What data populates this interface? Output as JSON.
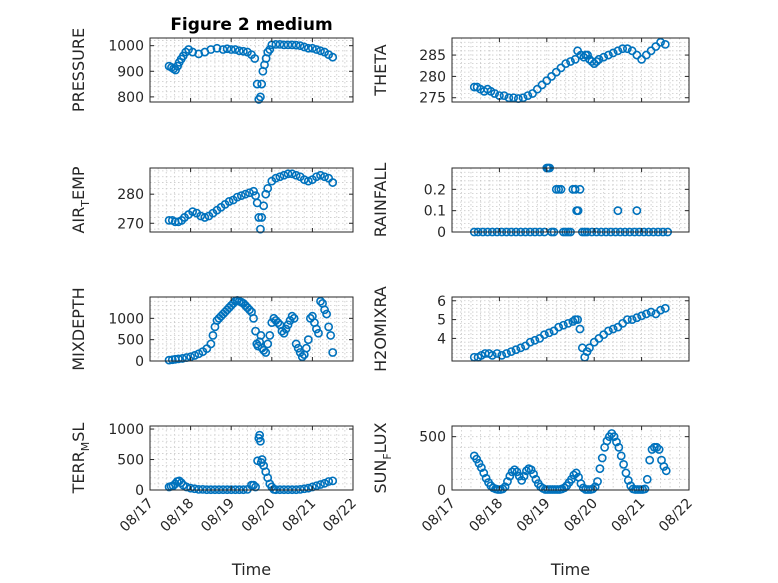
{
  "figure": {
    "background": "#ffffff",
    "marker_color": "#0072bd",
    "marker": "circle",
    "grid": "on",
    "minor_grid": "on"
  },
  "chart_data": [
    {
      "id": "pressure",
      "type": "scatter",
      "title": "Figure 2 medium",
      "xlabel": "",
      "ylabel": "PRESSURE",
      "xlim": [
        0,
        5
      ],
      "ylim": [
        780,
        1030
      ],
      "xticks": [],
      "yticks": [
        800,
        900,
        1000
      ],
      "yticklabels": [
        "800",
        "900",
        "1000"
      ],
      "x": [
        0.47,
        0.53,
        0.58,
        0.63,
        0.68,
        0.72,
        0.77,
        0.82,
        0.88,
        0.95,
        1.05,
        1.2,
        1.35,
        1.5,
        1.65,
        1.8,
        1.9,
        2.0,
        2.1,
        2.2,
        2.3,
        2.4,
        2.5,
        2.58,
        2.64,
        2.68,
        2.72,
        2.75,
        2.78,
        2.82,
        2.86,
        2.9,
        2.95,
        3.0,
        3.1,
        3.2,
        3.3,
        3.4,
        3.5,
        3.6,
        3.7,
        3.8,
        3.9,
        4.0,
        4.1,
        4.2,
        4.3,
        4.4,
        4.5
      ],
      "y": [
        920,
        915,
        910,
        905,
        920,
        935,
        948,
        960,
        975,
        985,
        975,
        968,
        975,
        985,
        990,
        985,
        988,
        985,
        985,
        980,
        978,
        975,
        965,
        950,
        850,
        790,
        800,
        850,
        900,
        925,
        950,
        975,
        985,
        1003,
        1005,
        1005,
        1003,
        1003,
        1003,
        1002,
        1000,
        995,
        990,
        990,
        985,
        980,
        975,
        965,
        955
      ]
    },
    {
      "id": "theta",
      "type": "scatter",
      "title": "",
      "xlabel": "",
      "ylabel": "THETA",
      "xlim": [
        0,
        5
      ],
      "ylim": [
        274,
        289
      ],
      "xticks": [],
      "yticks": [
        275,
        280,
        285
      ],
      "yticklabels": [
        "275",
        "280",
        "285"
      ],
      "x": [
        0.47,
        0.53,
        0.6,
        0.68,
        0.75,
        0.82,
        0.9,
        1.0,
        1.1,
        1.2,
        1.3,
        1.4,
        1.5,
        1.6,
        1.7,
        1.8,
        1.9,
        2.0,
        2.1,
        2.2,
        2.3,
        2.4,
        2.5,
        2.6,
        2.65,
        2.72,
        2.78,
        2.82,
        2.86,
        2.9,
        2.95,
        3.0,
        3.05,
        3.1,
        3.2,
        3.3,
        3.4,
        3.5,
        3.6,
        3.7,
        3.8,
        3.9,
        4.0,
        4.1,
        4.2,
        4.3,
        4.4,
        4.5
      ],
      "y": [
        277.5,
        277.5,
        277,
        276.5,
        277,
        276.5,
        276,
        275.5,
        275.5,
        275,
        275,
        274.8,
        275,
        275.5,
        276,
        277,
        278,
        279,
        280,
        281,
        282,
        283,
        283.5,
        284,
        286,
        285,
        284.5,
        285,
        285,
        284,
        283.5,
        283,
        283.5,
        284,
        284.5,
        285,
        285.5,
        286,
        286.5,
        286.5,
        286,
        285,
        284,
        285,
        286,
        287,
        288,
        287.5
      ]
    },
    {
      "id": "air_temp",
      "type": "scatter",
      "title": "",
      "xlabel": "",
      "ylabel": "AIR_TEMP",
      "xlim": [
        0,
        5
      ],
      "ylim": [
        267,
        289
      ],
      "xticks": [],
      "yticks": [
        270,
        280
      ],
      "yticklabels": [
        "270",
        "280"
      ],
      "x": [
        0.47,
        0.55,
        0.62,
        0.7,
        0.78,
        0.85,
        0.95,
        1.05,
        1.15,
        1.25,
        1.35,
        1.45,
        1.55,
        1.65,
        1.75,
        1.85,
        1.95,
        2.05,
        2.15,
        2.25,
        2.35,
        2.45,
        2.55,
        2.6,
        2.64,
        2.68,
        2.72,
        2.75,
        2.8,
        2.85,
        2.9,
        3.0,
        3.1,
        3.2,
        3.3,
        3.4,
        3.5,
        3.6,
        3.7,
        3.8,
        3.9,
        4.0,
        4.1,
        4.2,
        4.3,
        4.4,
        4.5
      ],
      "y": [
        271,
        271,
        270.5,
        270.5,
        271,
        272,
        273,
        274,
        273.5,
        272.5,
        272,
        272.5,
        273.5,
        274.5,
        275.5,
        276.5,
        277.5,
        278,
        279,
        279.5,
        280,
        280.5,
        281,
        279.5,
        277,
        272,
        268,
        272,
        276,
        280,
        282,
        284.5,
        285.5,
        286,
        286.5,
        287,
        287,
        286.5,
        286,
        285,
        284.5,
        285,
        286,
        286.5,
        286,
        285.5,
        284
      ]
    },
    {
      "id": "rainfall",
      "type": "scatter",
      "title": "",
      "xlabel": "",
      "ylabel": "RAINFALL",
      "xlim": [
        0,
        5
      ],
      "ylim": [
        0,
        0.3
      ],
      "xticks": [],
      "yticks": [
        0,
        0.1,
        0.2
      ],
      "yticklabels": [
        "0",
        "0.1",
        "0.2"
      ],
      "x": [
        0.47,
        0.55,
        0.65,
        0.75,
        0.85,
        0.95,
        1.05,
        1.15,
        1.25,
        1.35,
        1.45,
        1.55,
        1.65,
        1.75,
        1.85,
        1.95,
        2.0,
        2.03,
        2.06,
        2.1,
        2.15,
        2.2,
        2.25,
        2.3,
        2.35,
        2.4,
        2.45,
        2.5,
        2.55,
        2.6,
        2.63,
        2.66,
        2.7,
        2.75,
        2.8,
        2.85,
        2.95,
        3.05,
        3.15,
        3.25,
        3.35,
        3.45,
        3.55,
        3.65,
        3.75,
        3.85,
        3.95,
        4.05,
        4.15,
        4.25,
        4.35,
        4.45,
        4.55,
        3.5,
        3.9
      ],
      "y": [
        0,
        0,
        0,
        0,
        0,
        0,
        0,
        0,
        0,
        0,
        0,
        0,
        0,
        0,
        0,
        0,
        0.3,
        0.3,
        0.3,
        0,
        0,
        0.2,
        0.2,
        0.2,
        0,
        0,
        0,
        0,
        0.2,
        0.2,
        0.1,
        0.1,
        0.2,
        0,
        0,
        0,
        0,
        0,
        0,
        0,
        0,
        0,
        0,
        0,
        0,
        0,
        0,
        0,
        0,
        0,
        0,
        0,
        0,
        0.1,
        0.1
      ]
    },
    {
      "id": "mixdepth",
      "type": "scatter",
      "title": "",
      "xlabel": "",
      "ylabel": "MIXDEPTH",
      "xlim": [
        0,
        5
      ],
      "ylim": [
        0,
        1500
      ],
      "xticks": [],
      "yticks": [
        0,
        500,
        1000
      ],
      "yticklabels": [
        "0",
        "500",
        "1000"
      ],
      "x": [
        0.47,
        0.55,
        0.62,
        0.7,
        0.8,
        0.9,
        1.0,
        1.1,
        1.2,
        1.3,
        1.4,
        1.5,
        1.55,
        1.6,
        1.65,
        1.7,
        1.75,
        1.8,
        1.85,
        1.9,
        1.95,
        2.0,
        2.05,
        2.1,
        2.15,
        2.2,
        2.25,
        2.3,
        2.35,
        2.4,
        2.45,
        2.5,
        2.55,
        2.6,
        2.63,
        2.66,
        2.7,
        2.73,
        2.76,
        2.8,
        2.85,
        2.9,
        2.95,
        3.0,
        3.05,
        3.1,
        3.15,
        3.2,
        3.25,
        3.3,
        3.35,
        3.4,
        3.45,
        3.5,
        3.55,
        3.6,
        3.65,
        3.7,
        3.75,
        3.8,
        3.85,
        3.9,
        3.95,
        4.0,
        4.05,
        4.1,
        4.15,
        4.2,
        4.25,
        4.3,
        4.35,
        4.4,
        4.45,
        4.5
      ],
      "y": [
        20,
        30,
        40,
        50,
        60,
        80,
        100,
        130,
        170,
        220,
        290,
        400,
        600,
        800,
        950,
        1000,
        1050,
        1100,
        1150,
        1200,
        1250,
        1300,
        1350,
        1400,
        1420,
        1400,
        1380,
        1350,
        1300,
        1250,
        1200,
        1150,
        1000,
        700,
        400,
        350,
        450,
        600,
        300,
        250,
        200,
        400,
        600,
        900,
        1000,
        950,
        900,
        850,
        700,
        650,
        750,
        850,
        950,
        1050,
        1000,
        400,
        300,
        200,
        100,
        150,
        300,
        500,
        1000,
        1050,
        900,
        750,
        650,
        1400,
        1350,
        1200,
        1100,
        800,
        600,
        200
      ]
    },
    {
      "id": "h2omixra",
      "type": "scatter",
      "title": "",
      "xlabel": "",
      "ylabel": "H2OMIXRA",
      "xlim": [
        0,
        5
      ],
      "ylim": [
        2.8,
        6.2
      ],
      "xticks": [],
      "yticks": [
        4,
        5,
        6
      ],
      "yticklabels": [
        "4",
        "5",
        "6"
      ],
      "x": [
        0.47,
        0.55,
        0.62,
        0.7,
        0.78,
        0.85,
        0.95,
        1.05,
        1.15,
        1.25,
        1.35,
        1.45,
        1.55,
        1.65,
        1.75,
        1.85,
        1.95,
        2.05,
        2.15,
        2.25,
        2.35,
        2.45,
        2.55,
        2.6,
        2.65,
        2.7,
        2.75,
        2.8,
        2.85,
        2.9,
        3.0,
        3.1,
        3.2,
        3.3,
        3.4,
        3.5,
        3.6,
        3.7,
        3.8,
        3.9,
        4.0,
        4.1,
        4.2,
        4.3,
        4.4,
        4.5
      ],
      "y": [
        3,
        3,
        3.1,
        3.2,
        3.2,
        3.1,
        3.2,
        3.1,
        3.2,
        3.3,
        3.4,
        3.5,
        3.6,
        3.8,
        3.9,
        4.0,
        4.2,
        4.3,
        4.4,
        4.6,
        4.7,
        4.8,
        4.9,
        5.0,
        5.0,
        4.5,
        3.5,
        3.0,
        3.3,
        3.5,
        3.8,
        4.0,
        4.2,
        4.4,
        4.5,
        4.6,
        4.8,
        5.0,
        5.0,
        5.1,
        5.2,
        5.3,
        5.4,
        5.3,
        5.5,
        5.6
      ]
    },
    {
      "id": "terr_msl",
      "type": "scatter",
      "title": "",
      "xlabel": "Time",
      "ylabel": "TERR_MSL",
      "xlim": [
        0,
        5
      ],
      "ylim": [
        0,
        1050
      ],
      "xticks": [
        0,
        1,
        2,
        3,
        4,
        5
      ],
      "xticklabels": [
        "08/17",
        "08/18",
        "08/19",
        "08/20",
        "08/21",
        "08/22"
      ],
      "yticks": [
        0,
        500,
        1000
      ],
      "yticklabels": [
        "0",
        "500",
        "1000"
      ],
      "x": [
        0.47,
        0.52,
        0.57,
        0.62,
        0.67,
        0.72,
        0.77,
        0.82,
        0.9,
        1.0,
        1.1,
        1.2,
        1.3,
        1.4,
        1.5,
        1.6,
        1.7,
        1.8,
        1.9,
        2.0,
        2.1,
        2.2,
        2.3,
        2.4,
        2.5,
        2.55,
        2.6,
        2.65,
        2.68,
        2.7,
        2.72,
        2.74,
        2.76,
        2.8,
        2.85,
        2.9,
        2.95,
        3.0,
        3.05,
        3.1,
        3.2,
        3.3,
        3.4,
        3.5,
        3.6,
        3.7,
        3.8,
        3.9,
        4.0,
        4.1,
        4.2,
        4.3,
        4.4,
        4.5
      ],
      "y": [
        50,
        60,
        70,
        100,
        140,
        150,
        120,
        80,
        50,
        30,
        20,
        10,
        10,
        5,
        5,
        5,
        5,
        5,
        5,
        5,
        5,
        5,
        5,
        10,
        80,
        80,
        50,
        480,
        850,
        900,
        800,
        450,
        500,
        400,
        300,
        200,
        100,
        50,
        10,
        5,
        5,
        5,
        5,
        5,
        5,
        10,
        20,
        30,
        50,
        70,
        90,
        110,
        140,
        150
      ]
    },
    {
      "id": "sun_flux",
      "type": "scatter",
      "title": "",
      "xlabel": "Time",
      "ylabel": "SUN_FLUX",
      "xlim": [
        0,
        5
      ],
      "ylim": [
        0,
        600
      ],
      "xticks": [
        0,
        1,
        2,
        3,
        4,
        5
      ],
      "xticklabels": [
        "08/17",
        "08/18",
        "08/19",
        "08/20",
        "08/21",
        "08/22"
      ],
      "yticks": [
        0,
        500
      ],
      "yticklabels": [
        "0",
        "500"
      ],
      "x": [
        0.47,
        0.52,
        0.57,
        0.62,
        0.67,
        0.72,
        0.77,
        0.82,
        0.87,
        0.92,
        0.97,
        1.02,
        1.07,
        1.12,
        1.17,
        1.22,
        1.27,
        1.32,
        1.37,
        1.42,
        1.47,
        1.52,
        1.57,
        1.62,
        1.67,
        1.72,
        1.77,
        1.82,
        1.87,
        1.92,
        1.97,
        2.02,
        2.07,
        2.12,
        2.17,
        2.22,
        2.27,
        2.32,
        2.37,
        2.42,
        2.47,
        2.52,
        2.57,
        2.62,
        2.67,
        2.72,
        2.77,
        2.82,
        2.87,
        2.92,
        2.97,
        3.02,
        3.07,
        3.12,
        3.17,
        3.22,
        3.27,
        3.32,
        3.37,
        3.42,
        3.47,
        3.52,
        3.57,
        3.62,
        3.67,
        3.72,
        3.77,
        3.82,
        3.87,
        3.92,
        3.97,
        4.02,
        4.07,
        4.12,
        4.17,
        4.22,
        4.27,
        4.32,
        4.37,
        4.42,
        4.47,
        4.52
      ],
      "y": [
        320,
        290,
        250,
        210,
        160,
        110,
        70,
        40,
        20,
        10,
        5,
        5,
        10,
        30,
        80,
        130,
        170,
        190,
        170,
        130,
        90,
        130,
        180,
        200,
        190,
        150,
        100,
        60,
        30,
        15,
        5,
        5,
        5,
        5,
        5,
        5,
        5,
        10,
        20,
        40,
        70,
        100,
        140,
        160,
        120,
        60,
        20,
        5,
        5,
        5,
        10,
        30,
        80,
        200,
        300,
        400,
        460,
        500,
        530,
        500,
        450,
        400,
        320,
        240,
        160,
        90,
        40,
        10,
        5,
        5,
        5,
        5,
        10,
        100,
        280,
        380,
        400,
        400,
        380,
        280,
        220,
        180
      ]
    }
  ]
}
